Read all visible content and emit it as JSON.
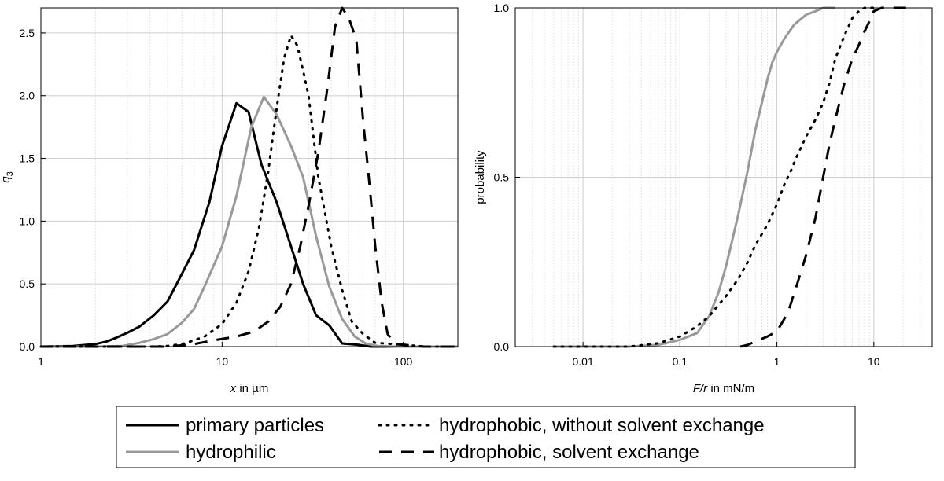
{
  "legend": {
    "primary": "primary particles",
    "hydrophilic": "hydrophilic",
    "hydrophobic_noexchange": "hydrophobic, without solvent exchange",
    "hydrophobic_exchange": "hydrophobic, solvent exchange"
  },
  "colors": {
    "black": "#000000",
    "gray": "#999999",
    "grid": "#cfcfcf"
  },
  "chart_data": [
    {
      "type": "line",
      "xscale": "log",
      "xlim": [
        1,
        200
      ],
      "ylim": [
        0,
        2.7
      ],
      "xlabel_var": "x",
      "xlabel_unit": " in µm",
      "ylabel_var": "q",
      "ylabel_sub": "3",
      "xticks": [
        {
          "value": 1,
          "label": "1"
        },
        {
          "value": 10,
          "label": "10"
        },
        {
          "value": 100,
          "label": "100"
        }
      ],
      "yticks": [
        {
          "value": 0,
          "label": "0.0"
        },
        {
          "value": 0.5,
          "label": "0.5"
        },
        {
          "value": 1,
          "label": "1.0"
        },
        {
          "value": 1.5,
          "label": "1.5"
        },
        {
          "value": 2,
          "label": "2.0"
        },
        {
          "value": 2.5,
          "label": "2.5"
        }
      ],
      "series": [
        {
          "name": "primary particles",
          "style": "solid",
          "color": "black",
          "points": [
            [
              1,
              0
            ],
            [
              1.5,
              0.005
            ],
            [
              2,
              0.02
            ],
            [
              2.3,
              0.04
            ],
            [
              2.6,
              0.07
            ],
            [
              3,
              0.11
            ],
            [
              3.5,
              0.16
            ],
            [
              4.2,
              0.25
            ],
            [
              5,
              0.36
            ],
            [
              6,
              0.58
            ],
            [
              7,
              0.77
            ],
            [
              8.5,
              1.15
            ],
            [
              10,
              1.6
            ],
            [
              12,
              1.94
            ],
            [
              14,
              1.87
            ],
            [
              16.5,
              1.45
            ],
            [
              20,
              1.15
            ],
            [
              24,
              0.8
            ],
            [
              28,
              0.5
            ],
            [
              33,
              0.25
            ],
            [
              39,
              0.17
            ],
            [
              46,
              0.025
            ],
            [
              56,
              0.015
            ],
            [
              66,
              0
            ],
            [
              200,
              0
            ]
          ]
        },
        {
          "name": "hydrophilic",
          "style": "solid",
          "color": "gray",
          "points": [
            [
              1,
              0
            ],
            [
              2,
              0
            ],
            [
              2.8,
              0.005
            ],
            [
              3.5,
              0.03
            ],
            [
              4.2,
              0.06
            ],
            [
              5,
              0.1
            ],
            [
              6,
              0.19
            ],
            [
              7,
              0.3
            ],
            [
              8,
              0.48
            ],
            [
              10,
              0.8
            ],
            [
              12,
              1.2
            ],
            [
              14.5,
              1.75
            ],
            [
              17,
              1.99
            ],
            [
              20,
              1.85
            ],
            [
              24,
              1.6
            ],
            [
              28,
              1.35
            ],
            [
              33,
              0.88
            ],
            [
              39,
              0.48
            ],
            [
              46,
              0.22
            ],
            [
              54,
              0.08
            ],
            [
              62,
              0.025
            ],
            [
              72,
              0.005
            ],
            [
              90,
              0
            ],
            [
              200,
              0
            ]
          ]
        },
        {
          "name": "hydrophobic, without solvent exchange",
          "style": "dotted",
          "color": "black",
          "points": [
            [
              1,
              0
            ],
            [
              4,
              0
            ],
            [
              5,
              0.005
            ],
            [
              6,
              0.02
            ],
            [
              7,
              0.05
            ],
            [
              8,
              0.08
            ],
            [
              10,
              0.18
            ],
            [
              12,
              0.35
            ],
            [
              14,
              0.6
            ],
            [
              16,
              0.95
            ],
            [
              18,
              1.4
            ],
            [
              20,
              1.9
            ],
            [
              22,
              2.3
            ],
            [
              24,
              2.48
            ],
            [
              26,
              2.4
            ],
            [
              28,
              2.2
            ],
            [
              30,
              2.0
            ],
            [
              34,
              1.35
            ],
            [
              40,
              0.8
            ],
            [
              46,
              0.45
            ],
            [
              52,
              0.2
            ],
            [
              60,
              0.1
            ],
            [
              70,
              0.03
            ],
            [
              90,
              0.02
            ],
            [
              110,
              0.01
            ],
            [
              130,
              0
            ],
            [
              200,
              0
            ]
          ]
        },
        {
          "name": "hydrophobic, solvent exchange",
          "style": "dashed",
          "color": "black",
          "points": [
            [
              1,
              0
            ],
            [
              5,
              0
            ],
            [
              7,
              0.02
            ],
            [
              9,
              0.05
            ],
            [
              12,
              0.08
            ],
            [
              15,
              0.12
            ],
            [
              18,
              0.2
            ],
            [
              21,
              0.32
            ],
            [
              24,
              0.5
            ],
            [
              27,
              0.8
            ],
            [
              30,
              1.12
            ],
            [
              34,
              1.55
            ],
            [
              38,
              2.05
            ],
            [
              42,
              2.55
            ],
            [
              46,
              2.7
            ],
            [
              50,
              2.62
            ],
            [
              55,
              2.45
            ],
            [
              60,
              1.8
            ],
            [
              65,
              1.3
            ],
            [
              70,
              0.8
            ],
            [
              76,
              0.35
            ],
            [
              82,
              0.1
            ],
            [
              90,
              0.02
            ],
            [
              110,
              0.01
            ],
            [
              130,
              0
            ],
            [
              200,
              0
            ]
          ]
        }
      ]
    },
    {
      "type": "line",
      "xscale": "log",
      "xlim": [
        0.002,
        40
      ],
      "ylim": [
        0,
        1
      ],
      "xlabel_var": "F/r",
      "xlabel_unit": " in mN/m",
      "ylabel": "probability",
      "xticks": [
        {
          "value": 0.01,
          "label": "0.01"
        },
        {
          "value": 0.1,
          "label": "0.1"
        },
        {
          "value": 1,
          "label": "1"
        },
        {
          "value": 10,
          "label": "10"
        }
      ],
      "yticks": [
        {
          "value": 0,
          "label": "0.0"
        },
        {
          "value": 0.5,
          "label": "0.5"
        },
        {
          "value": 1,
          "label": "1.0"
        }
      ],
      "series": [
        {
          "name": "hydrophilic",
          "style": "solid",
          "color": "gray",
          "points": [
            [
              0.005,
              0
            ],
            [
              0.01,
              0
            ],
            [
              0.03,
              0
            ],
            [
              0.06,
              0.005
            ],
            [
              0.1,
              0.02
            ],
            [
              0.15,
              0.04
            ],
            [
              0.2,
              0.09
            ],
            [
              0.25,
              0.16
            ],
            [
              0.3,
              0.24
            ],
            [
              0.35,
              0.32
            ],
            [
              0.4,
              0.39
            ],
            [
              0.5,
              0.52
            ],
            [
              0.6,
              0.64
            ],
            [
              0.7,
              0.72
            ],
            [
              0.8,
              0.79
            ],
            [
              0.9,
              0.84
            ],
            [
              1.0,
              0.87
            ],
            [
              1.2,
              0.91
            ],
            [
              1.5,
              0.95
            ],
            [
              2,
              0.98
            ],
            [
              2.5,
              0.99
            ],
            [
              3,
              1
            ],
            [
              4,
              1
            ]
          ]
        },
        {
          "name": "hydrophobic, without solvent exchange",
          "style": "dotted",
          "color": "black",
          "points": [
            [
              0.005,
              0
            ],
            [
              0.01,
              0
            ],
            [
              0.03,
              0
            ],
            [
              0.06,
              0.01
            ],
            [
              0.1,
              0.03
            ],
            [
              0.15,
              0.06
            ],
            [
              0.2,
              0.09
            ],
            [
              0.3,
              0.15
            ],
            [
              0.4,
              0.2
            ],
            [
              0.5,
              0.25
            ],
            [
              0.6,
              0.3
            ],
            [
              0.8,
              0.36
            ],
            [
              1,
              0.42
            ],
            [
              1.2,
              0.48
            ],
            [
              1.4,
              0.52
            ],
            [
              1.6,
              0.56
            ],
            [
              2,
              0.62
            ],
            [
              2.5,
              0.67
            ],
            [
              3,
              0.72
            ],
            [
              3.5,
              0.78
            ],
            [
              4,
              0.85
            ],
            [
              5,
              0.92
            ],
            [
              6,
              0.97
            ],
            [
              7,
              0.99
            ],
            [
              8,
              1
            ],
            [
              10,
              1
            ]
          ]
        },
        {
          "name": "hydrophobic, solvent exchange",
          "style": "dashed",
          "color": "black",
          "points": [
            [
              0.42,
              0
            ],
            [
              0.5,
              0.005
            ],
            [
              0.6,
              0.015
            ],
            [
              0.8,
              0.03
            ],
            [
              1,
              0.045
            ],
            [
              1.3,
              0.1
            ],
            [
              1.6,
              0.18
            ],
            [
              2,
              0.27
            ],
            [
              2.5,
              0.38
            ],
            [
              3,
              0.5
            ],
            [
              3.5,
              0.6
            ],
            [
              4,
              0.67
            ],
            [
              4.5,
              0.73
            ],
            [
              5,
              0.78
            ],
            [
              6,
              0.85
            ],
            [
              7,
              0.89
            ],
            [
              8,
              0.93
            ],
            [
              9,
              0.96
            ],
            [
              10,
              0.99
            ],
            [
              12,
              1
            ],
            [
              20,
              1
            ],
            [
              25,
              1
            ]
          ]
        }
      ]
    }
  ]
}
